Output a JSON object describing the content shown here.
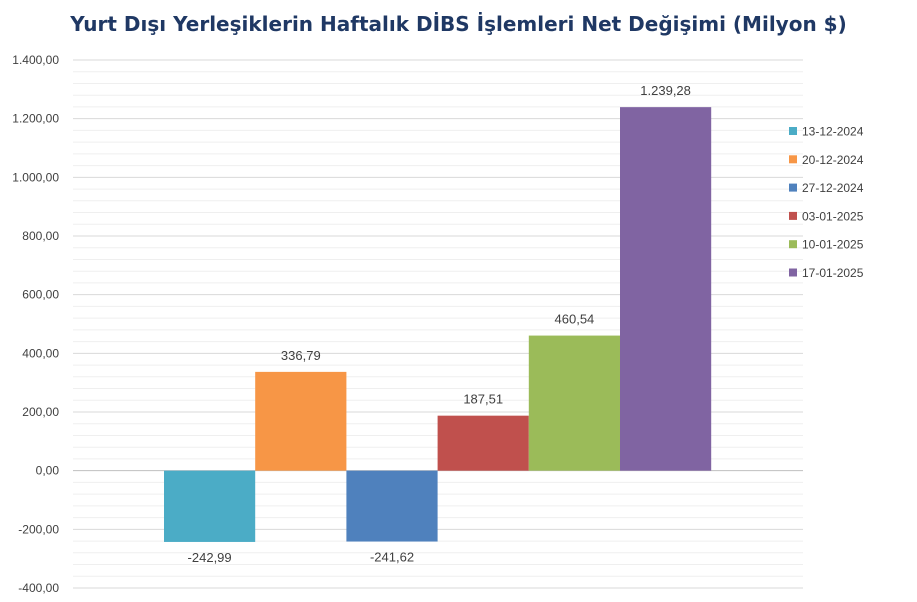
{
  "chart_data": {
    "type": "bar",
    "title": "Yurt Dışı Yerleşiklerin Haftalık DİBS İşlemleri Net Değişimi (Milyon $)",
    "xlabel": "",
    "ylabel": "",
    "ylim": [
      -400,
      1400
    ],
    "yticks": [
      1400,
      1200,
      1000,
      800,
      600,
      400,
      200,
      0,
      -200,
      -400
    ],
    "ytick_labels": [
      "1.400,00",
      "1.200,00",
      "1.000,00",
      "800,00",
      "600,00",
      "400,00",
      "200,00",
      "0,00",
      "-200,00",
      "-400,00"
    ],
    "grid": true,
    "legend_position": "right",
    "series": [
      {
        "name": "13-12-2024",
        "value": -242.99,
        "label": "-242,99",
        "color": "#4bacc6"
      },
      {
        "name": "20-12-2024",
        "value": 336.79,
        "label": "336,79",
        "color": "#f79646"
      },
      {
        "name": "27-12-2024",
        "value": -241.62,
        "label": "-241,62",
        "color": "#4f81bd"
      },
      {
        "name": "03-01-2025",
        "value": 187.51,
        "label": "187,51",
        "color": "#c0504d"
      },
      {
        "name": "10-01-2025",
        "value": 460.54,
        "label": "460,54",
        "color": "#9bbb59"
      },
      {
        "name": "17-01-2025",
        "value": 1239.28,
        "label": "1.239,28",
        "color": "#8064a2"
      }
    ]
  }
}
